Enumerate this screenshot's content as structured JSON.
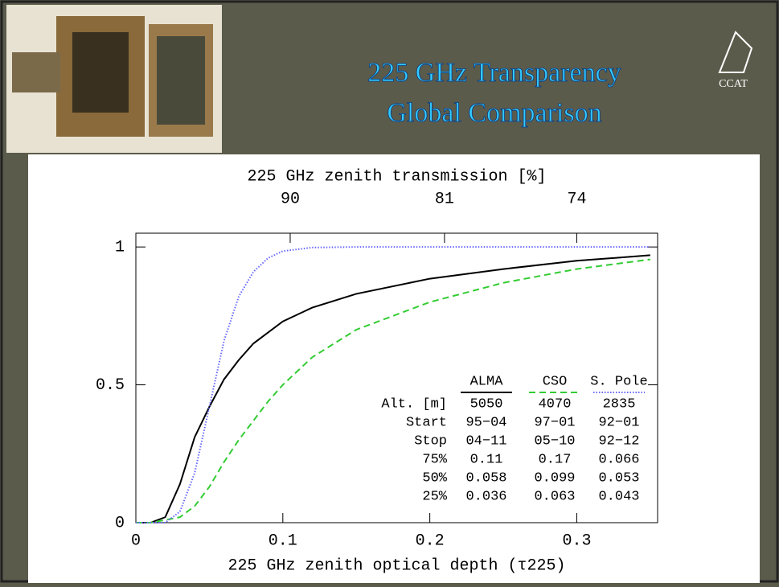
{
  "header": {
    "title_lines": [
      "225 GHz Transparency",
      "Global Comparison"
    ],
    "logo": "CCAT"
  },
  "chart_data": {
    "type": "line",
    "x_label": "225 GHz zenith optical depth (τ225)",
    "x2_label": "225 GHz zenith transmission [%]",
    "x": [
      0,
      0.01,
      0.02,
      0.03,
      0.04,
      0.05,
      0.06,
      0.07,
      0.08,
      0.09,
      0.1,
      0.12,
      0.15,
      0.2,
      0.25,
      0.3,
      0.35
    ],
    "series": [
      {
        "name": "ALMA",
        "color": "#000000",
        "dash": "solid",
        "values": [
          0,
          0,
          0.02,
          0.14,
          0.31,
          0.42,
          0.52,
          0.59,
          0.65,
          0.69,
          0.73,
          0.78,
          0.83,
          0.885,
          0.92,
          0.95,
          0.97
        ]
      },
      {
        "name": "CSO",
        "color": "#33cc33",
        "dash": "dashed",
        "values": [
          0,
          0,
          0.01,
          0.02,
          0.06,
          0.13,
          0.22,
          0.3,
          0.37,
          0.44,
          0.5,
          0.6,
          0.7,
          0.8,
          0.87,
          0.92,
          0.955
        ]
      },
      {
        "name": "S. Pole",
        "color": "#6666ff",
        "dash": "dotted",
        "values": [
          0,
          0,
          0,
          0.04,
          0.18,
          0.42,
          0.66,
          0.82,
          0.91,
          0.96,
          0.985,
          0.998,
          1,
          1,
          1,
          1,
          1
        ]
      }
    ],
    "xlim": [
      0,
      0.355
    ],
    "ylim": [
      0,
      1.05
    ],
    "xticks": [
      0,
      0.1,
      0.2,
      0.3
    ],
    "yticks": [
      0,
      0.5,
      1
    ],
    "x2ticks": [
      {
        "value": 0.105,
        "label": "90"
      },
      {
        "value": 0.21,
        "label": "81"
      },
      {
        "value": 0.3,
        "label": "74"
      }
    ],
    "table": {
      "rows": [
        [
          "Alt. [m]",
          "5050",
          "4070",
          "2835"
        ],
        [
          "Start",
          "95−04",
          "97−01",
          "92−01"
        ],
        [
          "Stop",
          "04−11",
          "05−10",
          "92−12"
        ],
        [
          "75%",
          "0.11",
          "0.17",
          "0.066"
        ],
        [
          "50%",
          "0.058",
          "0.099",
          "0.053"
        ],
        [
          "25%",
          "0.036",
          "0.063",
          "0.043"
        ]
      ]
    }
  }
}
